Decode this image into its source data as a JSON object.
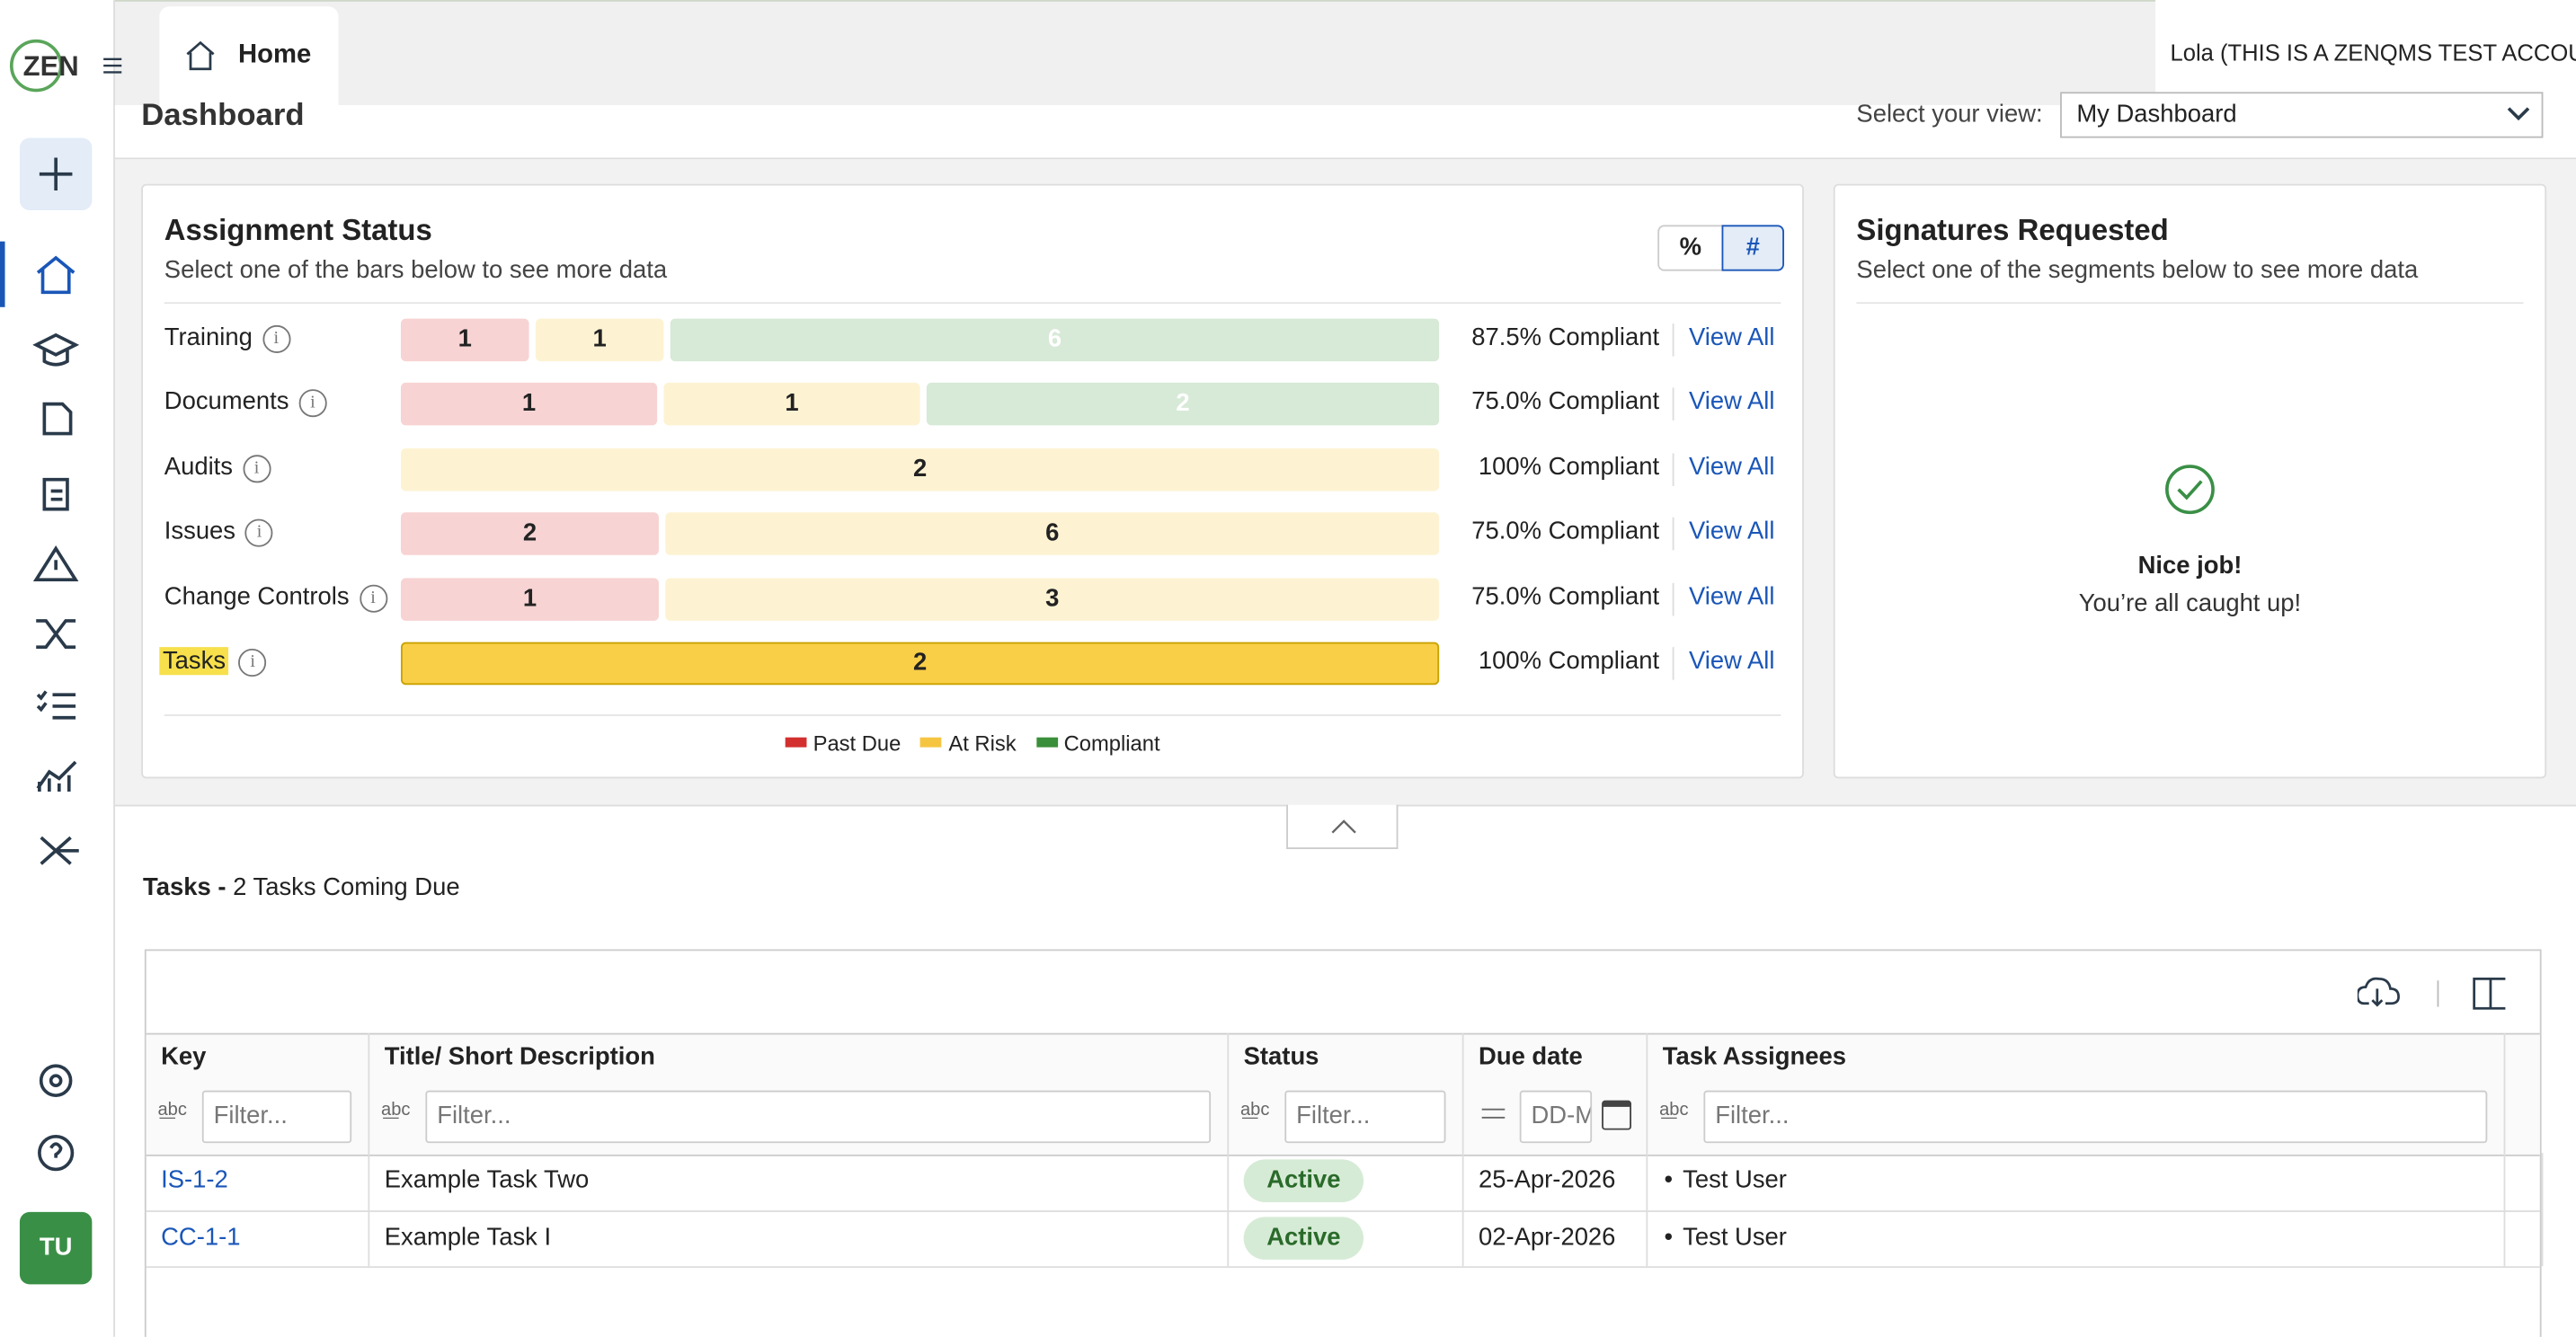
{
  "app": {
    "logo": "ZEN",
    "tab": "Home",
    "user": "Lola (THIS IS A ZENQMS TEST ACCOUNT)",
    "avatar": "TU"
  },
  "dashboard": {
    "title": "Dashboard",
    "view_label": "Select your view:",
    "view": "My Dashboard"
  },
  "assignment_status": {
    "title": "Assignment Status",
    "subtitle": "Select one of the bars below to see more data",
    "toggles": [
      "%",
      "#"
    ],
    "segment_colors": [
      "#f8d3d3",
      "#fdf3d3",
      "#d7e9d7"
    ],
    "rows": [
      {
        "label": "Training",
        "segments": [
          1,
          1,
          6
        ],
        "compliance": "87.5% Compliant",
        "link": "View All"
      },
      {
        "label": "Documents",
        "segments": [
          1,
          1,
          2
        ],
        "compliance": "75.0% Compliant",
        "link": "View All"
      },
      {
        "label": "Audits",
        "segments": [
          0,
          2,
          0
        ],
        "compliance": "100% Compliant",
        "link": "View All"
      },
      {
        "label": "Issues",
        "segments": [
          2,
          6,
          0
        ],
        "compliance": "75.0% Compliant",
        "link": "View All"
      },
      {
        "label": "Change Controls",
        "segments": [
          1,
          3,
          0
        ],
        "compliance": "75.0% Compliant",
        "link": "View All"
      },
      {
        "label": "Tasks",
        "segments": [
          0,
          2,
          0
        ],
        "compliance": "100% Compliant",
        "link": "View All",
        "selected": true
      }
    ],
    "legend": [
      "Past Due",
      "At Risk",
      "Compliant"
    ]
  },
  "signatures": {
    "title": "Signatures Requested",
    "subtitle": "Select one of the segments below to see more data",
    "message": "Nice job!",
    "detail": "You’re all caught up!"
  },
  "tasks": {
    "title": "Tasks -",
    "subtitle": "2 Tasks Coming Due",
    "columns": [
      "Key",
      "Title/ Short Description",
      "Status",
      "Due date",
      "Task Assignees"
    ],
    "filters": [
      "Filter...",
      "Filter...",
      "Filter...",
      "DD-M",
      "Filter..."
    ],
    "rows": [
      [
        "IS-1-2",
        "Example Task Two",
        "Active",
        "25-Apr-2026",
        "Test User"
      ],
      [
        "CC-1-1",
        "Example Task I",
        "Active",
        "02-Apr-2026",
        "Test User"
      ]
    ]
  }
}
